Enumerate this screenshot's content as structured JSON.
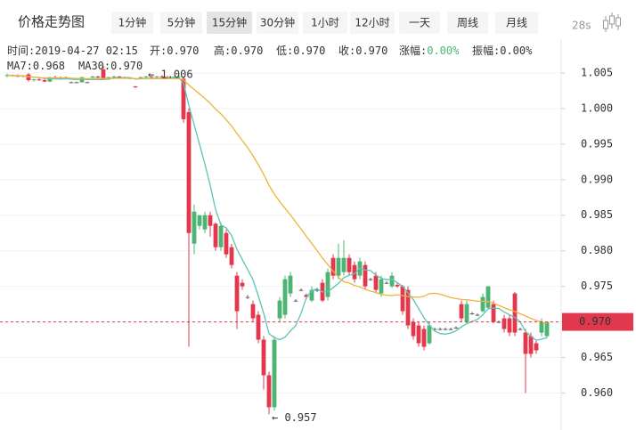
{
  "toolbar": {
    "title": "价格走势图",
    "intervals": [
      "1分钟",
      "5分钟",
      "15分钟",
      "30分钟",
      "1小时",
      "12小时",
      "一天",
      "周线",
      "月线"
    ],
    "active_interval": 2,
    "refresh": "28s"
  },
  "info": [
    {
      "label": "时间:",
      "value": "2019-04-27 02:15"
    },
    {
      "label": "开:",
      "value": "0.970"
    },
    {
      "label": "高:",
      "value": "0.970"
    },
    {
      "label": "低:",
      "value": "0.970"
    },
    {
      "label": "收:",
      "value": "0.970"
    },
    {
      "label": "涨幅:",
      "value": "0.00%"
    },
    {
      "label": "振幅:",
      "value": "0.00%"
    }
  ],
  "chart_data": {
    "type": "candlestick",
    "up_color": "#4cb574",
    "down_color": "#e2384d",
    "flat_color": "#666666",
    "ylim": [
      0.9548,
      1.007
    ],
    "yticks": [
      1.005,
      {
        "value": 1,
        "label": "1.000"
      },
      0.995,
      {
        "value": 0.99,
        "label": "0.990"
      },
      0.985,
      {
        "value": 0.98,
        "label": "0.980"
      },
      0.975,
      {
        "value": 0.97,
        "label": "0.970"
      },
      0.965,
      {
        "value": 0.96,
        "label": "0.960"
      }
    ],
    "grid": true,
    "last_price": {
      "value": 0.97,
      "label": "0.970",
      "color": "#e2384d"
    },
    "high_label": "← 1.006",
    "low_label": "← 0.957",
    "indicators": [
      {
        "label": "MA7:",
        "value": "0.968",
        "period": 7,
        "color": "#5cc4b5"
      },
      {
        "label": "MA30:",
        "value": "0.970",
        "period": 30,
        "color": "#f0b23a"
      }
    ],
    "open": [
      1.0046,
      1.0047,
      1.0046,
      1.0045,
      1.0048,
      1.004,
      1.0041,
      1.004,
      1.0038,
      1.0044,
      1.0043,
      1.0044,
      1.0037,
      1.0037,
      1.0037,
      1.0037,
      1.0044,
      1.0045,
      1.0055,
      1.0041,
      1.0044,
      1.0045,
      1.0044,
      1.0043,
      1.0031,
      1.0043,
      1.0044,
      1.0045,
      1.0044,
      1.0045,
      1.0044,
      1.0043,
      1.0044,
      1.0042,
      0.9995,
      0.981,
      0.9835,
      0.983,
      0.985,
      0.9838,
      0.9805,
      0.9825,
      0.9805,
      0.9765,
      0.9755,
      0.9735,
      0.9725,
      0.971,
      0.9675,
      0.9625,
      0.958,
      0.9705,
      0.971,
      0.974,
      0.973,
      0.9745,
      0.9738,
      0.973,
      0.9745,
      0.9755,
      0.9735,
      0.979,
      0.9765,
      0.977,
      0.979,
      0.978,
      0.9765,
      0.978,
      0.976,
      0.9765,
      0.974,
      0.9755,
      0.975,
      0.9752,
      0.975,
      0.9745,
      0.97,
      0.9695,
      0.969,
      0.967,
      0.969,
      0.969,
      0.969,
      0.969,
      0.9692,
      0.9725,
      0.97,
      0.9712,
      0.971,
      0.9715,
      0.972,
      0.9725,
      0.97,
      0.9705,
      0.9705,
      0.974,
      0.969,
      0.9685,
      0.968,
      0.967,
      0.9685,
      0.968
    ],
    "high": [
      1.0049,
      1.0048,
      1.0048,
      1.0047,
      1.005,
      1.0042,
      1.0043,
      1.0042,
      1.0045,
      1.0046,
      1.0045,
      1.0045,
      1.0038,
      1.0038,
      1.0045,
      1.0038,
      1.0046,
      1.0046,
      1.006,
      1.0045,
      1.0046,
      1.0046,
      1.0045,
      1.0044,
      1.0032,
      1.0045,
      1.0046,
      1.0046,
      1.0046,
      1.0047,
      1.0046,
      1.0045,
      1.0047,
      1.0045,
      1.0,
      0.9865,
      0.985,
      0.9855,
      0.9855,
      0.984,
      0.984,
      0.983,
      0.981,
      0.977,
      0.976,
      0.9738,
      0.973,
      0.9715,
      0.968,
      0.963,
      0.968,
      0.9735,
      0.9765,
      0.977,
      0.9732,
      0.9747,
      0.974,
      0.975,
      0.9748,
      0.976,
      0.9775,
      0.9795,
      0.981,
      0.9815,
      0.9795,
      0.9785,
      0.979,
      0.9785,
      0.9762,
      0.977,
      0.9765,
      0.9757,
      0.977,
      0.9755,
      0.9752,
      0.975,
      0.9705,
      0.97,
      0.9695,
      0.97,
      0.9692,
      0.9692,
      0.9692,
      0.9692,
      0.9694,
      0.973,
      0.973,
      0.9714,
      0.9712,
      0.974,
      0.975,
      0.973,
      0.9702,
      0.971,
      0.971,
      0.9742,
      0.9692,
      0.969,
      0.9685,
      0.9675,
      0.9705,
      0.97
    ],
    "low": [
      1.0044,
      1.0045,
      1.0044,
      1.0044,
      1.0038,
      1.0038,
      1.0039,
      1.0037,
      1.0037,
      1.0042,
      1.0041,
      1.0042,
      1.0036,
      1.0036,
      1.0036,
      1.0036,
      1.0043,
      1.0043,
      1.004,
      1.004,
      1.0043,
      1.0043,
      1.0042,
      1.0041,
      1.0029,
      1.0042,
      1.0043,
      1.0043,
      1.0043,
      1.0043,
      1.0042,
      1.0042,
      1.0043,
      0.998,
      0.9665,
      0.9795,
      0.983,
      0.9825,
      0.982,
      0.98,
      0.98,
      0.979,
      0.9775,
      0.969,
      0.9745,
      0.9732,
      0.97,
      0.967,
      0.9605,
      0.957,
      0.9575,
      0.97,
      0.9705,
      0.9735,
      0.9728,
      0.9743,
      0.9732,
      0.9728,
      0.9742,
      0.9728,
      0.973,
      0.976,
      0.976,
      0.9765,
      0.9765,
      0.9755,
      0.976,
      0.9745,
      0.9758,
      0.974,
      0.9735,
      0.9753,
      0.9748,
      0.9748,
      0.971,
      0.969,
      0.9675,
      0.9665,
      0.966,
      0.9668,
      0.9688,
      0.9688,
      0.9688,
      0.9688,
      0.969,
      0.97,
      0.9698,
      0.971,
      0.9708,
      0.9713,
      0.9718,
      0.9698,
      0.9698,
      0.9685,
      0.968,
      0.968,
      0.9688,
      0.96,
      0.965,
      0.9655,
      0.968,
      0.9678
    ],
    "close": [
      1.0047,
      1.0046,
      1.0045,
      1.0046,
      1.004,
      1.0041,
      1.004,
      1.0038,
      1.0044,
      1.0043,
      1.0044,
      1.0043,
      1.0037,
      1.0037,
      1.0044,
      1.0037,
      1.0045,
      1.0044,
      1.0041,
      1.0044,
      1.0045,
      1.0044,
      1.0043,
      1.0043,
      1.003,
      1.0044,
      1.0045,
      1.0044,
      1.0045,
      1.0044,
      1.0043,
      1.0044,
      1.0045,
      0.9985,
      0.9825,
      0.9855,
      0.985,
      0.985,
      0.9835,
      0.9805,
      0.9835,
      0.9795,
      0.978,
      0.9715,
      0.975,
      0.9735,
      0.9705,
      0.9675,
      0.9625,
      0.958,
      0.9675,
      0.973,
      0.976,
      0.9765,
      0.973,
      0.9745,
      0.9735,
      0.9745,
      0.9745,
      0.973,
      0.977,
      0.9765,
      0.979,
      0.979,
      0.977,
      0.976,
      0.9785,
      0.975,
      0.976,
      0.9745,
      0.976,
      0.9755,
      0.9765,
      0.975,
      0.9715,
      0.9695,
      0.968,
      0.967,
      0.9665,
      0.9695,
      0.969,
      0.969,
      0.969,
      0.969,
      0.9692,
      0.9705,
      0.9725,
      0.9712,
      0.971,
      0.9735,
      0.975,
      0.97,
      0.97,
      0.969,
      0.9685,
      0.9685,
      0.969,
      0.9655,
      0.9655,
      0.966,
      0.97,
      0.97
    ]
  }
}
